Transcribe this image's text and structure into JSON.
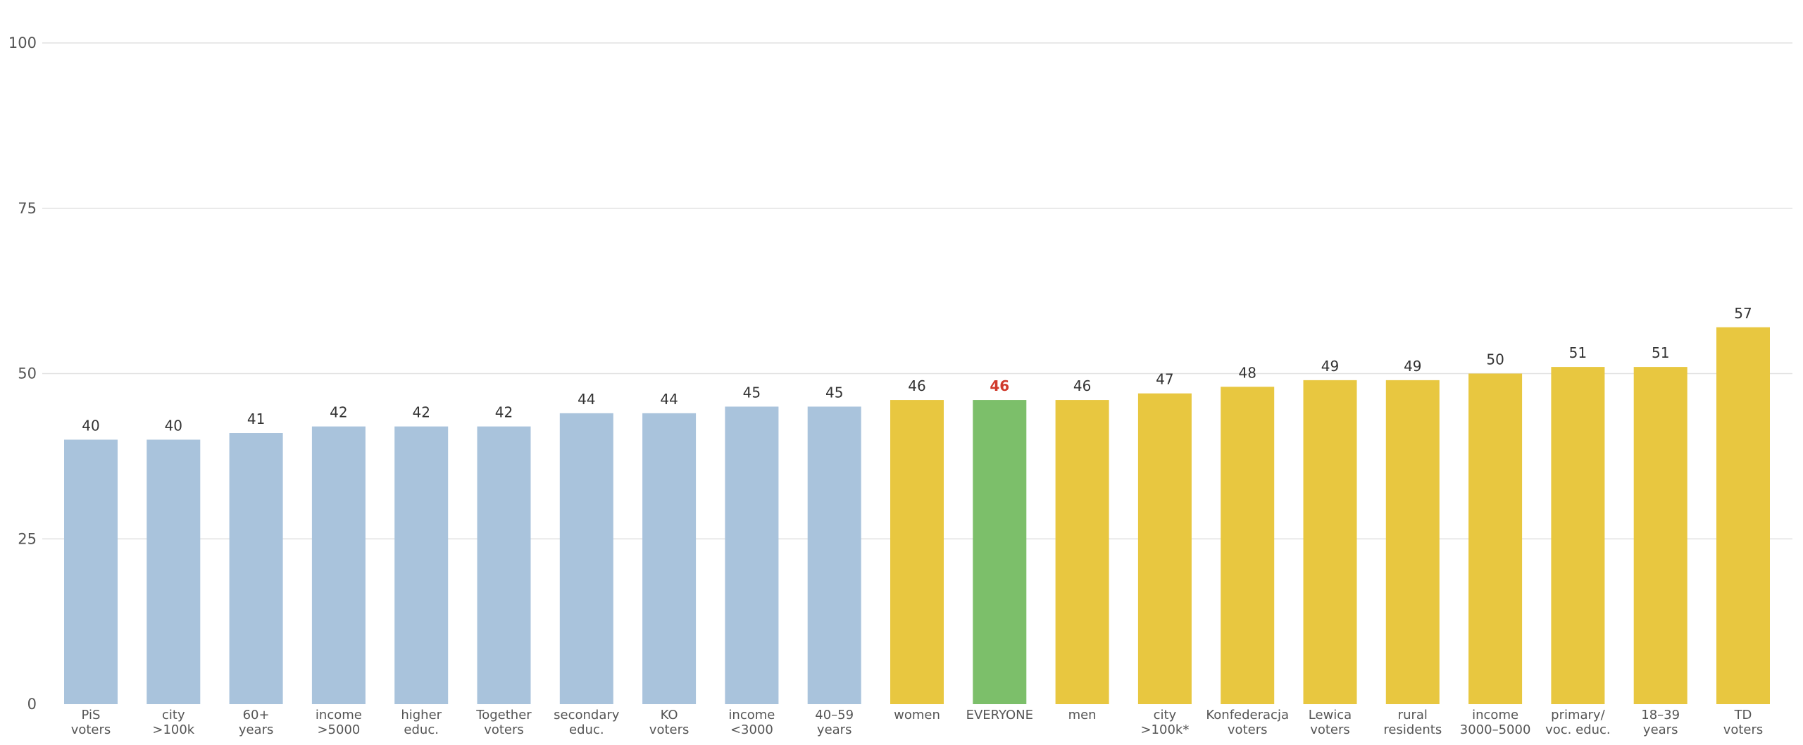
{
  "chart_data": {
    "type": "bar",
    "title": "",
    "xlabel": "",
    "ylabel": "",
    "ylim": [
      0,
      100
    ],
    "yticks": [
      0,
      25,
      50,
      75,
      100
    ],
    "grid": true,
    "legend": "none",
    "categories": [
      [
        "PiS",
        "voters"
      ],
      [
        "city",
        ">100k"
      ],
      [
        "60+",
        "years"
      ],
      [
        "income",
        ">5000"
      ],
      [
        "higher",
        "educ."
      ],
      [
        "Together",
        "voters"
      ],
      [
        "secondary",
        "educ."
      ],
      [
        "KO",
        "voters"
      ],
      [
        "income",
        "<3000"
      ],
      [
        "40–59",
        "years"
      ],
      [
        "women"
      ],
      [
        "EVERYONE"
      ],
      [
        "men"
      ],
      [
        "city",
        ">100k*"
      ],
      [
        "Konfederacja",
        "voters"
      ],
      [
        "Lewica",
        "voters"
      ],
      [
        "rural",
        "residents"
      ],
      [
        "income",
        "3000–5000"
      ],
      [
        "primary/",
        "voc. educ."
      ],
      [
        "18–39",
        "years"
      ],
      [
        "TD",
        "voters"
      ]
    ],
    "values": [
      40,
      40,
      41,
      42,
      42,
      42,
      44,
      44,
      45,
      45,
      46,
      46,
      46,
      47,
      48,
      49,
      49,
      50,
      51,
      51,
      57
    ],
    "bar_groups": [
      "below",
      "below",
      "below",
      "below",
      "below",
      "below",
      "below",
      "below",
      "below",
      "below",
      "above",
      "everyone",
      "above",
      "above",
      "above",
      "above",
      "above",
      "above",
      "above",
      "above",
      "above"
    ],
    "colors": {
      "below": "#a9c3dc",
      "above": "#e8c740",
      "everyone": "#7cbf6a",
      "everyone_label": "#d03a2c"
    }
  }
}
